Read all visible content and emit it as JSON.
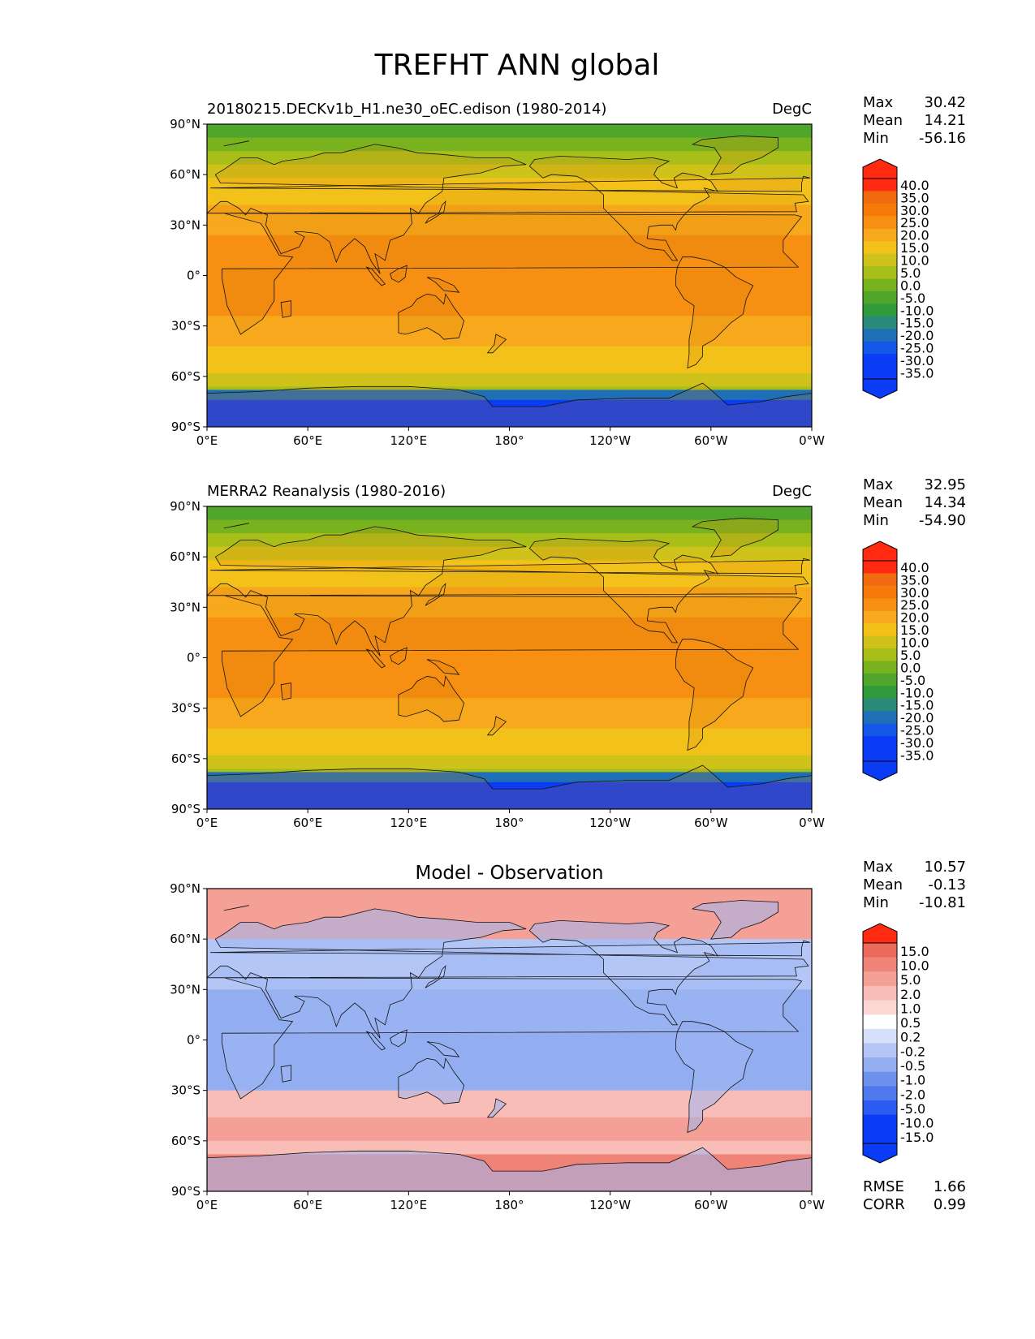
{
  "figure": {
    "title": "TREFHT ANN global"
  },
  "x_ticks": [
    "0°E",
    "60°E",
    "120°E",
    "180°",
    "120°W",
    "60°W",
    "0°W"
  ],
  "y_ticks": [
    "90°N",
    "60°N",
    "30°N",
    "0°",
    "30°S",
    "60°S",
    "90°S"
  ],
  "stat_labels": {
    "max": "Max",
    "mean": "Mean",
    "min": "Min",
    "rmse": "RMSE",
    "corr": "CORR"
  },
  "colors": {
    "temp_scale": [
      "#0a3cf5",
      "#1458e8",
      "#1f6fb6",
      "#2a8a7a",
      "#2f9a3c",
      "#4fa62a",
      "#78b31f",
      "#a8bf1a",
      "#cfc21a",
      "#f2c21a",
      "#f7a81c",
      "#f68f12",
      "#f57a0a",
      "#f26a0f",
      "#ff2a10",
      "#ff2a10"
    ],
    "diff_scale": [
      "#0a3cf5",
      "#2b5bf2",
      "#4d78ee",
      "#6f91ee",
      "#93adf1",
      "#b3c6f5",
      "#d6e0fa",
      "#ffffff",
      "#fbd8d4",
      "#f8bdb6",
      "#f4a097",
      "#f08377",
      "#ec6a5c",
      "#ff2a10"
    ]
  },
  "chart_data": [
    {
      "type": "heatmap",
      "panel": "model",
      "title": "",
      "left_title": "20180215.DECKv1b_H1.ne30_oEC.edison (1980-2014)",
      "units": "DegC",
      "xlim": [
        0,
        360
      ],
      "ylim": [
        -90,
        90
      ],
      "stats": {
        "max": "30.42",
        "mean": "14.21",
        "min": "-56.16"
      },
      "colorbar_levels": [
        "40.0",
        "35.0",
        "30.0",
        "25.0",
        "20.0",
        "15.0",
        "10.0",
        "5.0",
        "0.0",
        "-5.0",
        "-10.0",
        "-15.0",
        "-20.0",
        "-25.0",
        "-30.0",
        "-35.0"
      ]
    },
    {
      "type": "heatmap",
      "panel": "observation",
      "title": "",
      "left_title": "MERRA2 Reanalysis (1980-2016)",
      "units": "DegC",
      "xlim": [
        0,
        360
      ],
      "ylim": [
        -90,
        90
      ],
      "stats": {
        "max": "32.95",
        "mean": "14.34",
        "min": "-54.90"
      },
      "colorbar_levels": [
        "40.0",
        "35.0",
        "30.0",
        "25.0",
        "20.0",
        "15.0",
        "10.0",
        "5.0",
        "0.0",
        "-5.0",
        "-10.0",
        "-15.0",
        "-20.0",
        "-25.0",
        "-30.0",
        "-35.0"
      ]
    },
    {
      "type": "heatmap",
      "panel": "difference",
      "title": "Model - Observation",
      "left_title": "",
      "units": "",
      "xlim": [
        0,
        360
      ],
      "ylim": [
        -90,
        90
      ],
      "stats": {
        "max": "10.57",
        "mean": "-0.13",
        "min": "-10.81",
        "rmse": "1.66",
        "corr": "0.99"
      },
      "colorbar_levels": [
        "15.0",
        "10.0",
        "5.0",
        "2.0",
        "1.0",
        "0.5",
        "0.2",
        "-0.2",
        "-0.5",
        "-1.0",
        "-2.0",
        "-5.0",
        "-10.0",
        "-15.0"
      ]
    }
  ]
}
